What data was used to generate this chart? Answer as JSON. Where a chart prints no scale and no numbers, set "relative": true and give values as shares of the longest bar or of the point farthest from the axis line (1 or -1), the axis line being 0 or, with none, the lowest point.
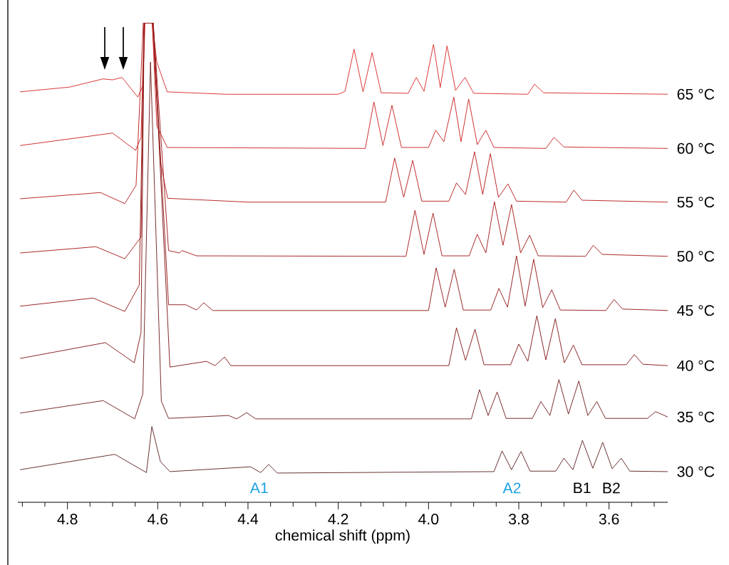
{
  "chart_data": {
    "type": "line",
    "relative": true,
    "xlabel": "chemical shift (ppm)",
    "xlim": [
      4.91,
      3.47
    ],
    "xticks": [
      4.8,
      4.6,
      4.4,
      4.2,
      {
        "value": 4.0,
        "label": "4.0"
      },
      3.8,
      3.6
    ],
    "series": [
      {
        "name": "65 °C",
        "color": "#d92a2a",
        "x": [
          4.905,
          4.795,
          4.721,
          4.7,
          4.679,
          4.644,
          4.633,
          4.628,
          4.612,
          4.602,
          4.579,
          4.45,
          4.2,
          4.185,
          4.165,
          4.145,
          4.125,
          4.105,
          4.045,
          4.027,
          4.01,
          3.989,
          3.974,
          3.959,
          3.94,
          3.919,
          3.9,
          3.78,
          3.765,
          3.745,
          3.47
        ],
        "values": [
          0.856,
          0.866,
          0.883,
          0.881,
          0.886,
          0.845,
          0.869,
          1.0,
          1.0,
          0.918,
          0.856,
          0.851,
          0.851,
          0.857,
          0.945,
          0.856,
          0.938,
          0.854,
          0.853,
          0.886,
          0.857,
          0.955,
          0.865,
          0.952,
          0.859,
          0.886,
          0.853,
          0.851,
          0.872,
          0.854,
          0.851
        ]
      },
      {
        "name": "60 °C",
        "color": "#c92222",
        "x": [
          4.905,
          4.7,
          4.649,
          4.637,
          4.63,
          4.612,
          4.602,
          4.579,
          4.14,
          4.121,
          4.101,
          4.081,
          4.06,
          4.0,
          3.984,
          3.966,
          3.944,
          3.928,
          3.911,
          3.892,
          3.873,
          3.855,
          3.74,
          3.722,
          3.7,
          3.47
        ],
        "values": [
          0.744,
          0.77,
          0.734,
          0.761,
          1.0,
          1.0,
          0.785,
          0.74,
          0.738,
          0.835,
          0.744,
          0.828,
          0.74,
          0.74,
          0.776,
          0.752,
          0.845,
          0.752,
          0.841,
          0.746,
          0.776,
          0.74,
          0.738,
          0.761,
          0.741,
          0.738
        ]
      },
      {
        "name": "55 °C",
        "color": "#b81d1d",
        "x": [
          4.905,
          4.727,
          4.673,
          4.648,
          4.632,
          4.612,
          4.594,
          4.578,
          4.4,
          4.095,
          4.075,
          4.055,
          4.035,
          4.015,
          3.955,
          3.938,
          3.918,
          3.898,
          3.88,
          3.863,
          3.845,
          3.824,
          3.805,
          3.695,
          3.678,
          3.66,
          3.47
        ],
        "values": [
          0.633,
          0.646,
          0.623,
          0.661,
          1.0,
          1.0,
          0.71,
          0.634,
          0.626,
          0.626,
          0.718,
          0.636,
          0.713,
          0.628,
          0.628,
          0.666,
          0.642,
          0.731,
          0.642,
          0.727,
          0.636,
          0.664,
          0.628,
          0.626,
          0.651,
          0.63,
          0.626
        ]
      },
      {
        "name": "50 °C",
        "color": "#a61a1a",
        "x": [
          4.905,
          4.737,
          4.673,
          4.637,
          4.63,
          4.61,
          4.576,
          4.552,
          4.546,
          4.514,
          4.05,
          4.03,
          4.01,
          3.99,
          3.97,
          3.91,
          3.892,
          3.873,
          3.854,
          3.835,
          3.816,
          3.796,
          3.776,
          3.757,
          3.652,
          3.635,
          3.615,
          3.47
        ],
        "values": [
          0.52,
          0.533,
          0.508,
          0.553,
          1.0,
          1.0,
          0.525,
          0.52,
          0.525,
          0.514,
          0.513,
          0.609,
          0.517,
          0.603,
          0.514,
          0.514,
          0.559,
          0.52,
          0.627,
          0.536,
          0.621,
          0.52,
          0.557,
          0.514,
          0.513,
          0.536,
          0.517,
          0.513
        ]
      },
      {
        "name": "45 °C",
        "color": "#941818",
        "x": [
          4.905,
          4.743,
          4.673,
          4.641,
          4.63,
          4.61,
          4.576,
          4.538,
          4.514,
          4.498,
          4.478,
          4.0,
          3.983,
          3.963,
          3.943,
          3.923,
          3.862,
          3.844,
          3.825,
          3.805,
          3.786,
          3.767,
          3.747,
          3.727,
          3.708,
          3.607,
          3.589,
          3.57,
          3.47
        ],
        "values": [
          0.409,
          0.426,
          0.398,
          0.453,
          1.0,
          1.0,
          0.412,
          0.412,
          0.401,
          0.416,
          0.4,
          0.4,
          0.489,
          0.407,
          0.486,
          0.401,
          0.401,
          0.446,
          0.407,
          0.514,
          0.409,
          0.507,
          0.406,
          0.443,
          0.401,
          0.4,
          0.423,
          0.403,
          0.4
        ]
      },
      {
        "name": "40 °C",
        "color": "#831818",
        "x": [
          4.905,
          4.716,
          4.652,
          4.637,
          4.63,
          4.61,
          4.573,
          4.492,
          4.473,
          4.452,
          4.438,
          3.955,
          3.938,
          3.918,
          3.897,
          3.877,
          3.818,
          3.8,
          3.78,
          3.76,
          3.74,
          3.719,
          3.699,
          3.679,
          3.66,
          3.562,
          3.544,
          3.525,
          3.47
        ],
        "values": [
          0.3,
          0.333,
          0.291,
          0.354,
          1.0,
          1.0,
          0.282,
          0.294,
          0.285,
          0.303,
          0.285,
          0.285,
          0.364,
          0.296,
          0.361,
          0.287,
          0.287,
          0.33,
          0.294,
          0.389,
          0.297,
          0.383,
          0.291,
          0.328,
          0.287,
          0.287,
          0.308,
          0.288,
          0.285
        ]
      },
      {
        "name": "35 °C",
        "color": "#701e1e",
        "x": [
          4.905,
          4.721,
          4.651,
          4.633,
          4.616,
          4.592,
          4.576,
          4.443,
          4.425,
          4.403,
          4.383,
          3.905,
          3.887,
          3.868,
          3.848,
          3.828,
          3.77,
          3.751,
          3.731,
          3.711,
          3.69,
          3.667,
          3.647,
          3.627,
          3.608,
          3.515,
          3.497,
          3.47
        ],
        "values": [
          0.186,
          0.212,
          0.174,
          0.226,
          0.918,
          0.211,
          0.175,
          0.181,
          0.174,
          0.187,
          0.174,
          0.174,
          0.235,
          0.181,
          0.23,
          0.175,
          0.175,
          0.21,
          0.181,
          0.256,
          0.184,
          0.253,
          0.181,
          0.21,
          0.175,
          0.175,
          0.189,
          0.178
        ]
      },
      {
        "name": "30 °C",
        "color": "#5c2424",
        "x": [
          4.905,
          4.695,
          4.625,
          4.613,
          4.594,
          4.573,
          4.394,
          4.372,
          4.354,
          4.335,
          3.855,
          3.837,
          3.816,
          3.795,
          3.775,
          3.718,
          3.7,
          3.68,
          3.659,
          3.636,
          3.614,
          3.593,
          3.573,
          3.554,
          3.47
        ],
        "values": [
          0.068,
          0.1,
          0.062,
          0.158,
          0.085,
          0.064,
          0.074,
          0.062,
          0.079,
          0.061,
          0.064,
          0.107,
          0.068,
          0.106,
          0.065,
          0.065,
          0.092,
          0.068,
          0.129,
          0.071,
          0.125,
          0.07,
          0.092,
          0.065,
          0.064
        ]
      }
    ],
    "annotations": [
      "A1",
      "A2",
      "B1",
      "B2"
    ]
  }
}
